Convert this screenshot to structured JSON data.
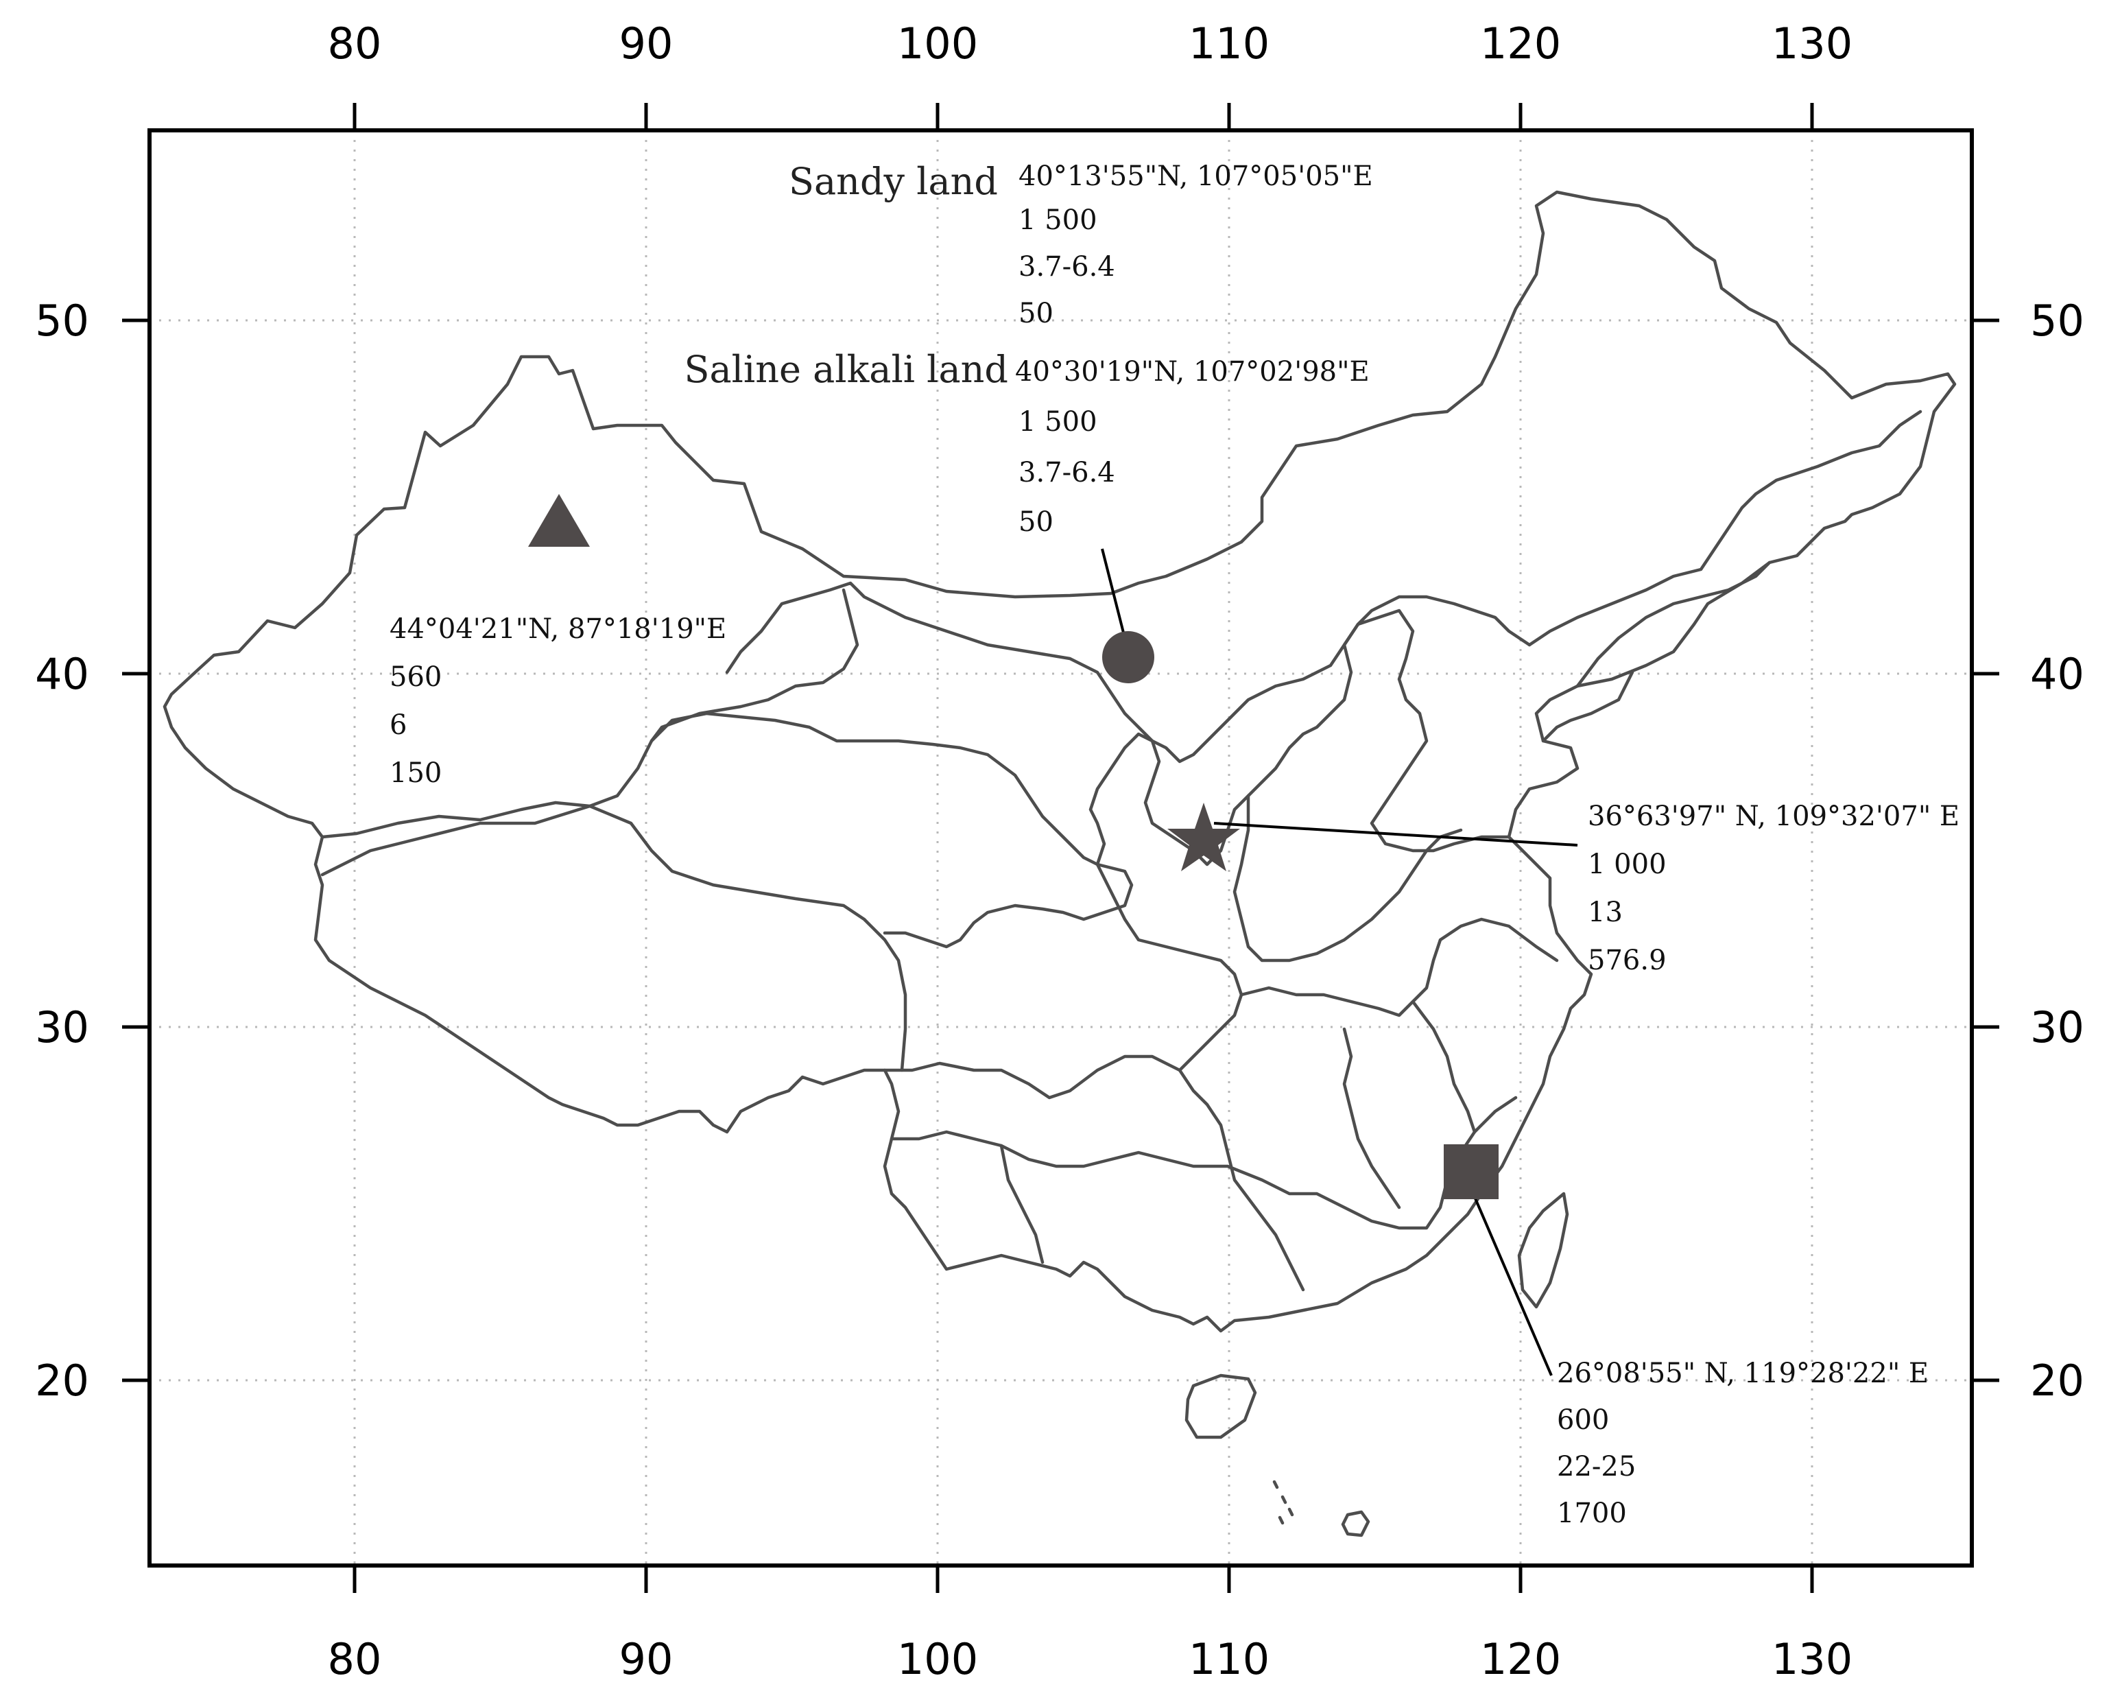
{
  "map": {
    "lon_ticks": [
      "80",
      "90",
      "100",
      "110",
      "120",
      "130"
    ],
    "lat_ticks": [
      "50",
      "40",
      "30",
      "20"
    ],
    "marker_color": "#4f4a4a",
    "border_color": "#4d4d4d"
  },
  "sites": {
    "triangle": {
      "lines": [
        "44°04'21\"N, 87°18'19\"E",
        "560",
        "6",
        "150"
      ]
    },
    "circle": {
      "sandy_label": "Sandy land",
      "sandy_lines": [
        "40°13'55\"N, 107°05'05\"E",
        "1 500",
        "3.7-6.4",
        "50"
      ],
      "saline_label": "Saline alkali land",
      "saline_lines": [
        "40°30'19\"N, 107°02'98\"E",
        "1 500",
        "3.7-6.4",
        "50"
      ]
    },
    "star": {
      "lines": [
        "36°63'97\" N, 109°32'07\" E",
        "1 000",
        "13",
        "576.9"
      ]
    },
    "square": {
      "lines": [
        "26°08'55\" N, 119°28'22\" E",
        "600",
        "22-25",
        "1700"
      ]
    }
  }
}
